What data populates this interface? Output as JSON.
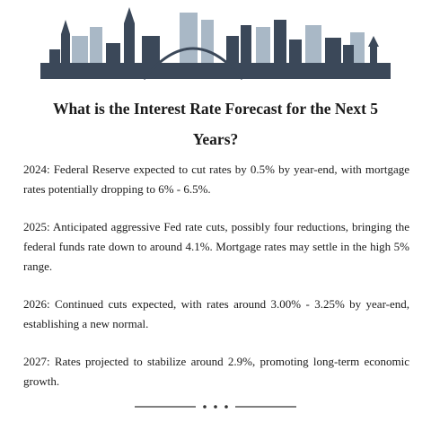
{
  "header": {
    "title": "What is the Interest Rate Forecast for the Next 5 Years?"
  },
  "paragraphs": [
    "2024: Federal Reserve expected to cut rates by 0.5% by year-end, with mortgage rates potentially dropping to 6% - 6.5%.",
    "2025: Anticipated aggressive Fed rate cuts, possibly four reductions, bringing the federal funds rate down to around 4.1%. Mortgage rates may settle in the high 5% range.",
    "2026: Continued cuts expected, with rates around 3.00% - 3.25% by year-end, establishing a new normal.",
    "2027: Rates projected to stabilize around 2.9%, promoting long-term economic growth."
  ]
}
